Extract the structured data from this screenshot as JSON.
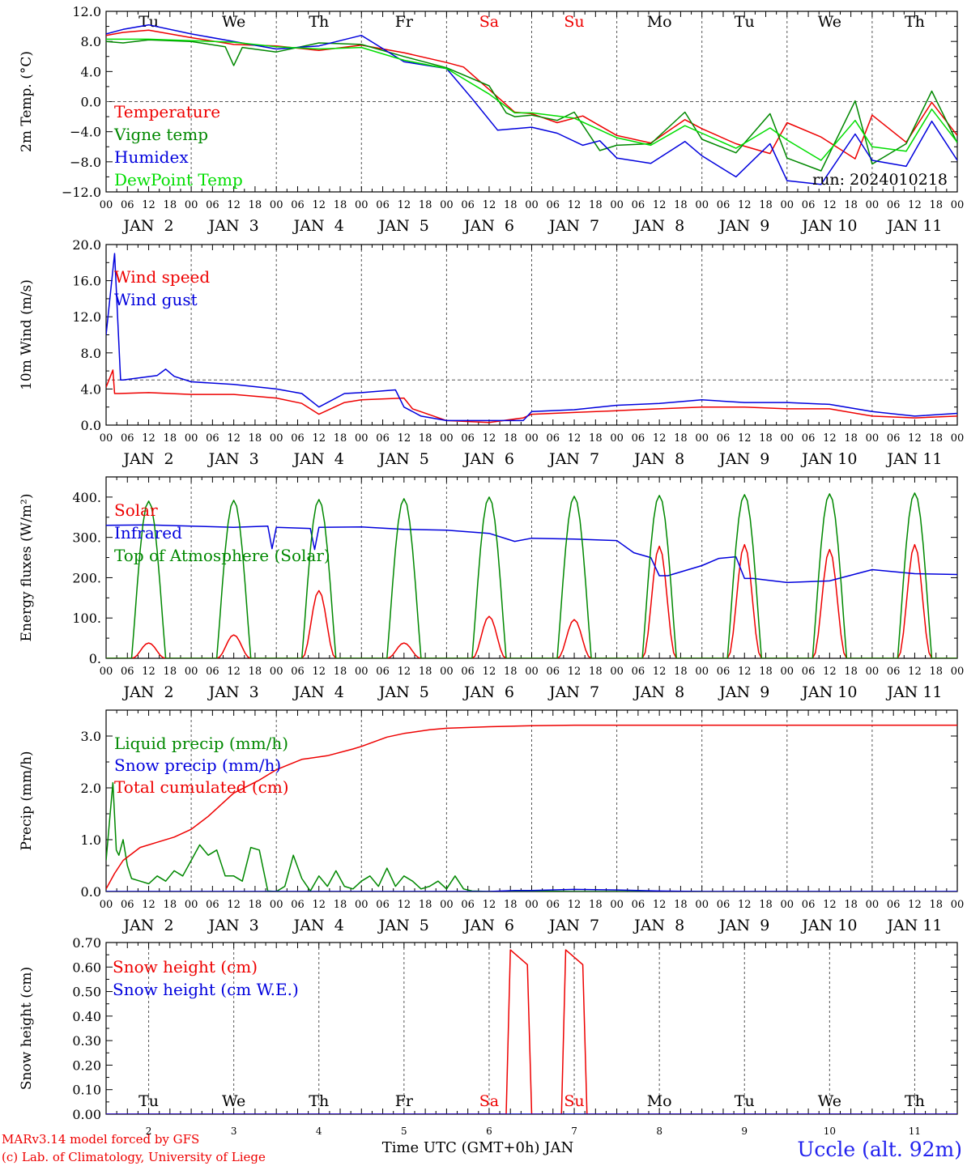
{
  "run_label": "run: 2024010218",
  "station_label": "Uccle (alt. 92m)",
  "footer_credit_1": "MARv3.14 model forced by GFS",
  "footer_credit_2": "(c) Lab. of Climatology, University of Liege",
  "xaxis_title": "Time UTC (GMT+0h) JAN",
  "days": {
    "weekday_labels": [
      "Tu",
      "We",
      "Th",
      "Fr",
      "Sa",
      "Su",
      "Mo",
      "Tu",
      "We",
      "Th"
    ],
    "weekend_flags": [
      false,
      false,
      false,
      false,
      true,
      true,
      false,
      false,
      false,
      false
    ],
    "date_labels": [
      "JAN  2",
      "JAN  3",
      "JAN  4",
      "JAN  5",
      "JAN  6",
      "JAN  7",
      "JAN  8",
      "JAN  9",
      "JAN 10",
      "JAN 11"
    ],
    "short_date_labels": [
      "2",
      "3",
      "4",
      "5",
      "6",
      "7",
      "8",
      "9",
      "10",
      "11"
    ],
    "hour_labels": [
      "00",
      "06",
      "12",
      "18"
    ],
    "final_hour_label": "00"
  },
  "colors": {
    "red": "#ee0000",
    "blue": "#0000dd",
    "dark_green": "#008800",
    "light_green": "#00dd00",
    "weekend_text": "#ee0000",
    "station": "#2222ee"
  },
  "chart_data": [
    {
      "id": "temp",
      "type": "line",
      "ylabel": "2m Temp. (°C)",
      "ylim": [
        -12,
        12
      ],
      "yticks": [
        12,
        8,
        4,
        0,
        -4,
        -8,
        -12
      ],
      "ytick_labels": [
        "12.0",
        "8.0",
        "4.0",
        "0.0",
        "−4.0",
        "−8.0",
        "−12.0"
      ],
      "hline": 0,
      "x_unit": "day offset from JAN 2 00 UTC",
      "legend": [
        "Temperature",
        "Vigne temp",
        "Humidex",
        "DewPoint Temp"
      ],
      "series": [
        {
          "name": "Temperature",
          "color": "#ee0000",
          "x": [
            0,
            0.2,
            0.5,
            1,
            1.5,
            2,
            2.5,
            3,
            3.5,
            4,
            4.2,
            4.5,
            4.8,
            5,
            5.3,
            5.6,
            6,
            6.4,
            6.8,
            7,
            7.4,
            7.8,
            8,
            8.4,
            8.8,
            9,
            9.4,
            9.7,
            10
          ],
          "y": [
            8.8,
            9.2,
            9.5,
            8.5,
            7.6,
            7.4,
            6.8,
            7.5,
            6.5,
            5.2,
            4.6,
            1.6,
            -1.4,
            -1.6,
            -2.8,
            -1.9,
            -4.5,
            -5.5,
            -2.4,
            -3.6,
            -5.6,
            -6.9,
            -2.8,
            -4.7,
            -7.6,
            -1.8,
            -5.4,
            -0.1,
            -4.5
          ]
        },
        {
          "name": "Vigne temp",
          "color": "#008800",
          "x": [
            0,
            0.2,
            0.5,
            1,
            1.4,
            1.5,
            1.6,
            2,
            2.5,
            3,
            3.5,
            4,
            4.5,
            4.7,
            4.8,
            5,
            5.3,
            5.5,
            5.8,
            6,
            6.4,
            6.8,
            7,
            7.4,
            7.8,
            8,
            8.4,
            8.8,
            9,
            9.4,
            9.7,
            10
          ],
          "y": [
            8,
            7.8,
            8.2,
            8,
            7.3,
            4.8,
            7.2,
            6.6,
            7.8,
            7.6,
            6,
            4.5,
            2.1,
            -1.5,
            -2,
            -1.8,
            -2.5,
            -1.4,
            -6.5,
            -5.8,
            -5.6,
            -1.4,
            -5,
            -6.8,
            -1.6,
            -7.5,
            -9.2,
            0.1,
            -8.3,
            -5.6,
            1.4,
            -5.5
          ]
        },
        {
          "name": "Humidex",
          "color": "#0000dd",
          "x": [
            0,
            0.2,
            0.5,
            1,
            1.5,
            2,
            2.5,
            3,
            3.5,
            4,
            4.3,
            4.6,
            5,
            5.3,
            5.6,
            5.8,
            6,
            6.4,
            6.8,
            7,
            7.4,
            7.8,
            8,
            8.4,
            8.8,
            9,
            9.4,
            9.7,
            10
          ],
          "y": [
            9,
            9.6,
            10.2,
            9,
            8,
            7,
            7.4,
            8.8,
            5.3,
            4.4,
            0.4,
            -3.8,
            -3.4,
            -4.2,
            -5.8,
            -5.2,
            -7.5,
            -8.2,
            -5.3,
            -7.2,
            -10,
            -5.6,
            -10.5,
            -11,
            -4.3,
            -7.8,
            -8.6,
            -2.6,
            -7.8
          ]
        },
        {
          "name": "DewPoint Temp",
          "color": "#00dd00",
          "x": [
            0,
            0.5,
            1,
            1.5,
            2,
            2.5,
            3,
            3.5,
            4,
            4.5,
            4.8,
            5,
            5.5,
            6,
            6.4,
            6.8,
            7,
            7.4,
            7.8,
            8,
            8.4,
            8.8,
            9,
            9.4,
            9.7,
            10
          ],
          "y": [
            8.3,
            8.3,
            8.1,
            7.9,
            7.3,
            7,
            7.2,
            5.5,
            4.4,
            1,
            -1.5,
            -1.5,
            -2.2,
            -4.8,
            -5.8,
            -3.2,
            -4.2,
            -6.2,
            -3.5,
            -5.1,
            -7.8,
            -2.5,
            -6,
            -6.6,
            -1,
            -5.4
          ]
        }
      ]
    },
    {
      "id": "wind",
      "type": "line",
      "ylabel": "10m Wind (m/s)",
      "ylim": [
        0,
        20
      ],
      "yticks": [
        20,
        16,
        12,
        8,
        4,
        0
      ],
      "ytick_labels": [
        "20.0",
        "16.0",
        "12.0",
        "8.0",
        "4.0",
        "0.0"
      ],
      "hline": 5,
      "legend": [
        "Wind speed",
        "Wind gust"
      ],
      "series": [
        {
          "name": "Wind speed",
          "color": "#ee0000",
          "x": [
            0,
            0.08,
            0.1,
            0.15,
            0.5,
            1,
            1.5,
            2,
            2.3,
            2.5,
            2.8,
            3,
            3.5,
            3.6,
            4,
            4.5,
            4.9,
            5,
            5.5,
            6,
            6.5,
            7,
            7.5,
            8,
            8.5,
            9,
            9.5,
            10
          ],
          "y": [
            4.2,
            6.1,
            3.5,
            3.5,
            3.6,
            3.4,
            3.4,
            3,
            2.4,
            1.2,
            2.5,
            2.8,
            3,
            1.8,
            0.5,
            0.3,
            0.8,
            1.2,
            1.4,
            1.6,
            1.8,
            2,
            2,
            1.8,
            1.8,
            1,
            0.8,
            1
          ]
        },
        {
          "name": "Wind gust",
          "color": "#0000dd",
          "x": [
            0,
            0.1,
            0.17,
            0.2,
            0.6,
            0.7,
            0.8,
            1,
            1.5,
            2,
            2.3,
            2.5,
            2.8,
            3,
            3.4,
            3.5,
            3.7,
            4,
            4.5,
            4.9,
            5,
            5.5,
            6,
            6.5,
            7,
            7.5,
            8,
            8.5,
            9,
            9.5,
            10
          ],
          "y": [
            10,
            19,
            5,
            5,
            5.5,
            6.2,
            5.4,
            4.8,
            4.5,
            4,
            3.5,
            2,
            3.5,
            3.6,
            3.9,
            2,
            1,
            0.5,
            0.5,
            0.5,
            1.5,
            1.7,
            2.2,
            2.4,
            2.8,
            2.5,
            2.5,
            2.3,
            1.5,
            1,
            1.3
          ]
        }
      ]
    },
    {
      "id": "energy",
      "type": "line",
      "ylabel": "Energy fluxes (W/m²)",
      "ylim": [
        0,
        450
      ],
      "yticks": [
        400,
        300,
        200,
        100,
        0
      ],
      "ytick_labels": [
        "400.",
        "300.",
        "200.",
        "100.",
        "0."
      ],
      "legend": [
        "Solar",
        "Infrared",
        "Top of Atmosphere (Solar)"
      ],
      "solar_peaks": [
        38,
        58,
        168,
        38,
        104,
        96,
        278,
        282,
        270,
        282
      ],
      "toa_peaks": [
        390,
        392,
        394,
        396,
        400,
        402,
        404,
        406,
        408,
        410
      ],
      "series": [
        {
          "name": "Solar",
          "color": "#ee0000"
        },
        {
          "name": "Infrared",
          "color": "#0000dd",
          "x": [
            0,
            0.5,
            1,
            1.5,
            1.9,
            1.95,
            2,
            2.4,
            2.45,
            2.5,
            3,
            3.5,
            4,
            4.5,
            4.8,
            5,
            5.5,
            6,
            6.2,
            6.4,
            6.5,
            6.6,
            7,
            7.2,
            7.4,
            7.5,
            7.6,
            8,
            8.5,
            9,
            9.5,
            10
          ],
          "y": [
            330,
            331,
            328,
            325,
            328,
            272,
            325,
            322,
            270,
            325,
            326,
            320,
            318,
            310,
            290,
            298,
            296,
            292,
            262,
            250,
            205,
            205,
            230,
            248,
            252,
            198,
            198,
            188,
            192,
            220,
            210,
            208
          ]
        },
        {
          "name": "Top of Atmosphere (Solar)",
          "color": "#008800"
        }
      ]
    },
    {
      "id": "precip",
      "type": "line",
      "ylabel": "Precip (mm/h)",
      "ylim": [
        0,
        3.5
      ],
      "yticks": [
        3,
        2,
        1,
        0
      ],
      "ytick_labels": [
        "3.0",
        "2.0",
        "1.0",
        "0.0"
      ],
      "legend": [
        "Liquid precip (mm/h)",
        "Snow precip (mm/h)",
        "Total cumulated (cm)"
      ],
      "series": [
        {
          "name": "Liquid precip (mm/h)",
          "color": "#008800",
          "x": [
            0,
            0.08,
            0.12,
            0.15,
            0.2,
            0.25,
            0.3,
            0.4,
            0.5,
            0.6,
            0.7,
            0.8,
            0.9,
            1,
            1.1,
            1.2,
            1.3,
            1.4,
            1.5,
            1.6,
            1.7,
            1.8,
            1.9,
            2,
            2.1,
            2.2,
            2.3,
            2.4,
            2.5,
            2.6,
            2.7,
            2.8,
            2.9,
            3,
            3.1,
            3.2,
            3.3,
            3.4,
            3.5,
            3.6,
            3.7,
            3.8,
            3.9,
            4,
            4.1,
            4.2,
            4.3,
            4.5,
            5,
            5.5,
            6,
            7
          ],
          "y": [
            0.6,
            2.1,
            0.8,
            0.7,
            1,
            0.5,
            0.25,
            0.2,
            0.15,
            0.3,
            0.2,
            0.4,
            0.3,
            0.6,
            0.9,
            0.7,
            0.8,
            0.3,
            0.3,
            0.2,
            0.85,
            0.8,
            0.01,
            0,
            0.1,
            0.7,
            0.25,
            0.01,
            0.3,
            0.1,
            0.4,
            0.1,
            0.05,
            0.2,
            0.3,
            0.1,
            0.45,
            0.1,
            0.3,
            0.2,
            0.05,
            0.1,
            0.2,
            0.05,
            0.3,
            0.05,
            0.01,
            0,
            0.01,
            0,
            0,
            0
          ]
        },
        {
          "name": "Snow precip (mm/h)",
          "color": "#0000dd",
          "x": [
            0,
            4.5,
            4.8,
            5,
            5.5,
            6,
            6.5,
            7,
            10
          ],
          "y": [
            0,
            0,
            0.02,
            0.02,
            0.04,
            0.03,
            0.01,
            0,
            0
          ]
        },
        {
          "name": "Total cumulated (cm)",
          "color": "#ee0000",
          "x": [
            0,
            0.1,
            0.2,
            0.4,
            0.6,
            0.8,
            1,
            1.2,
            1.5,
            1.8,
            2,
            2.3,
            2.6,
            2.9,
            3,
            3.3,
            3.5,
            3.8,
            4,
            4.5,
            5,
            5.5,
            6,
            6.5,
            7,
            8,
            9,
            10
          ],
          "y": [
            0.05,
            0.35,
            0.6,
            0.85,
            0.95,
            1.05,
            1.2,
            1.45,
            1.9,
            2.15,
            2.35,
            2.55,
            2.62,
            2.75,
            2.8,
            2.98,
            3.05,
            3.12,
            3.15,
            3.18,
            3.2,
            3.21,
            3.21,
            3.21,
            3.21,
            3.21,
            3.21,
            3.21
          ]
        }
      ]
    },
    {
      "id": "snow",
      "type": "line",
      "ylabel": "Snow height (cm)",
      "ylim": [
        0,
        0.7
      ],
      "yticks": [
        0.7,
        0.6,
        0.5,
        0.4,
        0.3,
        0.2,
        0.1,
        0
      ],
      "ytick_labels": [
        "0.70",
        "0.60",
        "0.50",
        "0.40",
        "0.30",
        "0.20",
        "0.10",
        "0.00"
      ],
      "legend": [
        "Snow height (cm)",
        "Snow height (cm W.E.)"
      ],
      "series": [
        {
          "name": "Snow height (cm)",
          "color": "#ee0000",
          "x": [
            0,
            4.7,
            4.75,
            4.95,
            5.0,
            5.35,
            5.4,
            5.6,
            5.65,
            10
          ],
          "y": [
            0,
            0,
            0.67,
            0.61,
            0,
            0,
            0.67,
            0.61,
            0,
            0
          ]
        },
        {
          "name": "Snow height (cm W.E.)",
          "color": "#0000dd",
          "x": [
            0,
            10
          ],
          "y": [
            0,
            0
          ]
        }
      ]
    }
  ]
}
